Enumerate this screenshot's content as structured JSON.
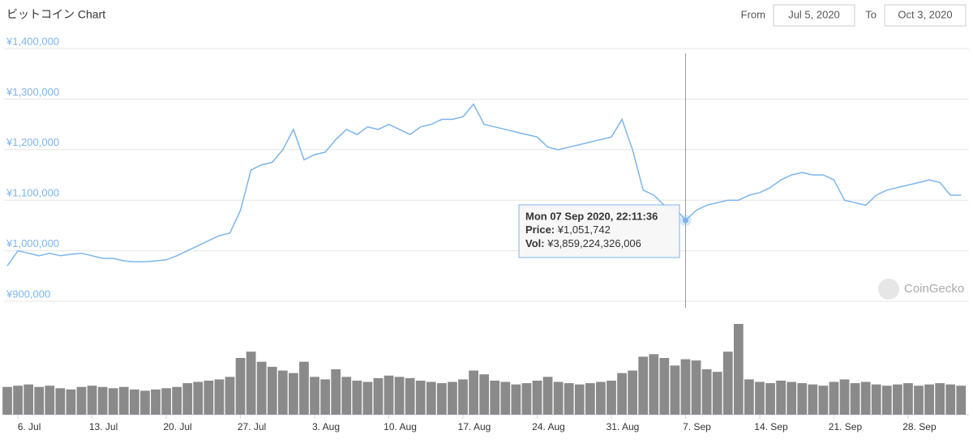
{
  "header": {
    "title": "ビットコイン Chart",
    "from_label": "From",
    "from_date": "Jul 5, 2020",
    "to_label": "To",
    "to_date": "Oct 3, 2020"
  },
  "watermark": "CoinGecko",
  "tooltip": {
    "date": "Mon 07 Sep 2020, 22:11:36",
    "price_label": "Price:",
    "price": "¥1,051,742",
    "vol_label": "Vol:",
    "vol": "¥3,859,224,326,006"
  },
  "chart_data": {
    "type": "line",
    "categories": [
      null,
      "6. Jul",
      null,
      null,
      null,
      null,
      null,
      null,
      "13. Jul",
      null,
      null,
      null,
      null,
      null,
      null,
      "20. Jul",
      null,
      null,
      null,
      null,
      null,
      null,
      "27. Jul",
      null,
      null,
      null,
      null,
      null,
      null,
      "3. Aug",
      null,
      null,
      null,
      null,
      null,
      null,
      "10. Aug",
      null,
      null,
      null,
      null,
      null,
      null,
      "17. Aug",
      null,
      null,
      null,
      null,
      null,
      null,
      "24. Aug",
      null,
      null,
      null,
      null,
      null,
      null,
      "31. Aug",
      null,
      null,
      null,
      null,
      null,
      null,
      "7. Sep",
      null,
      null,
      null,
      null,
      null,
      null,
      "14. Sep",
      null,
      null,
      null,
      null,
      null,
      null,
      "21. Sep",
      null,
      null,
      null,
      null,
      null,
      null,
      "28. Sep",
      null,
      null,
      null,
      null,
      null
    ],
    "series": [
      {
        "color": "#7cb5ec",
        "values": [
          970000,
          1000000,
          995000,
          990000,
          995000,
          990000,
          993000,
          995000,
          990000,
          985000,
          985000,
          980000,
          978000,
          978000,
          980000,
          982000,
          990000,
          1000000,
          1010000,
          1020000,
          1030000,
          1035000,
          1080000,
          1160000,
          1170000,
          1175000,
          1200000,
          1240000,
          1180000,
          1190000,
          1195000,
          1220000,
          1240000,
          1230000,
          1245000,
          1240000,
          1250000,
          1240000,
          1230000,
          1245000,
          1250000,
          1260000,
          1260000,
          1265000,
          1290000,
          1250000,
          1245000,
          1240000,
          1235000,
          1230000,
          1225000,
          1205000,
          1200000,
          1205000,
          1210000,
          1215000,
          1220000,
          1225000,
          1260000,
          1200000,
          1120000,
          1110000,
          1090000,
          1085000,
          1060000,
          1080000,
          1090000,
          1095000,
          1100000,
          1100000,
          1110000,
          1115000,
          1125000,
          1140000,
          1150000,
          1155000,
          1150000,
          1150000,
          1140000,
          1100000,
          1095000,
          1090000,
          1110000,
          1120000,
          1125000,
          1130000,
          1135000,
          1140000,
          1135000,
          1110000,
          1110000
        ]
      },
      {
        "type": "bar",
        "color": "#8a8a8a",
        "values": [
          2200000000000.0,
          2300000000000.0,
          2400000000000.0,
          2200000000000.0,
          2300000000000.0,
          2100000000000.0,
          2000000000000.0,
          2200000000000.0,
          2300000000000.0,
          2200000000000.0,
          2100000000000.0,
          2200000000000.0,
          2000000000000.0,
          1900000000000.0,
          2000000000000.0,
          2100000000000.0,
          2200000000000.0,
          2500000000000.0,
          2600000000000.0,
          2700000000000.0,
          2800000000000.0,
          3000000000000.0,
          4500000000000.0,
          5000000000000.0,
          4200000000000.0,
          3800000000000.0,
          3500000000000.0,
          3300000000000.0,
          4200000000000.0,
          3000000000000.0,
          2800000000000.0,
          3600000000000.0,
          3000000000000.0,
          2700000000000.0,
          2600000000000.0,
          2900000000000.0,
          3100000000000.0,
          3000000000000.0,
          2900000000000.0,
          2700000000000.0,
          2600000000000.0,
          2500000000000.0,
          2600000000000.0,
          2800000000000.0,
          3500000000000.0,
          3200000000000.0,
          2700000000000.0,
          2600000000000.0,
          2400000000000.0,
          2500000000000.0,
          2700000000000.0,
          3000000000000.0,
          2600000000000.0,
          2500000000000.0,
          2400000000000.0,
          2500000000000.0,
          2600000000000.0,
          2700000000000.0,
          3300000000000.0,
          3500000000000.0,
          4600000000000.0,
          4800000000000.0,
          4500000000000.0,
          3900000000000.0,
          4400000000000.0,
          4300000000000.0,
          3600000000000.0,
          3400000000000.0,
          5000000000000.0,
          7200000000000.0,
          2800000000000.0,
          2600000000000.0,
          2500000000000.0,
          2700000000000.0,
          2600000000000.0,
          2500000000000.0,
          2400000000000.0,
          2300000000000.0,
          2600000000000.0,
          2800000000000.0,
          2500000000000.0,
          2600000000000.0,
          2400000000000.0,
          2300000000000.0,
          2400000000000.0,
          2500000000000.0,
          2300000000000.0,
          2400000000000.0,
          2500000000000.0,
          2400000000000.0,
          2300000000000.0
        ]
      }
    ],
    "ylim": [
      900000,
      1400000
    ],
    "yticks": [
      {
        "value": 900000,
        "label": "¥900,000"
      },
      {
        "value": 1000000,
        "label": "¥1,000,000"
      },
      {
        "value": 1100000,
        "label": "¥1,100,000"
      },
      {
        "value": 1200000,
        "label": "¥1,200,000"
      },
      {
        "value": 1300000,
        "label": "¥1,300,000"
      },
      {
        "value": 1400000,
        "label": "¥1,400,000"
      }
    ],
    "grid": true
  }
}
